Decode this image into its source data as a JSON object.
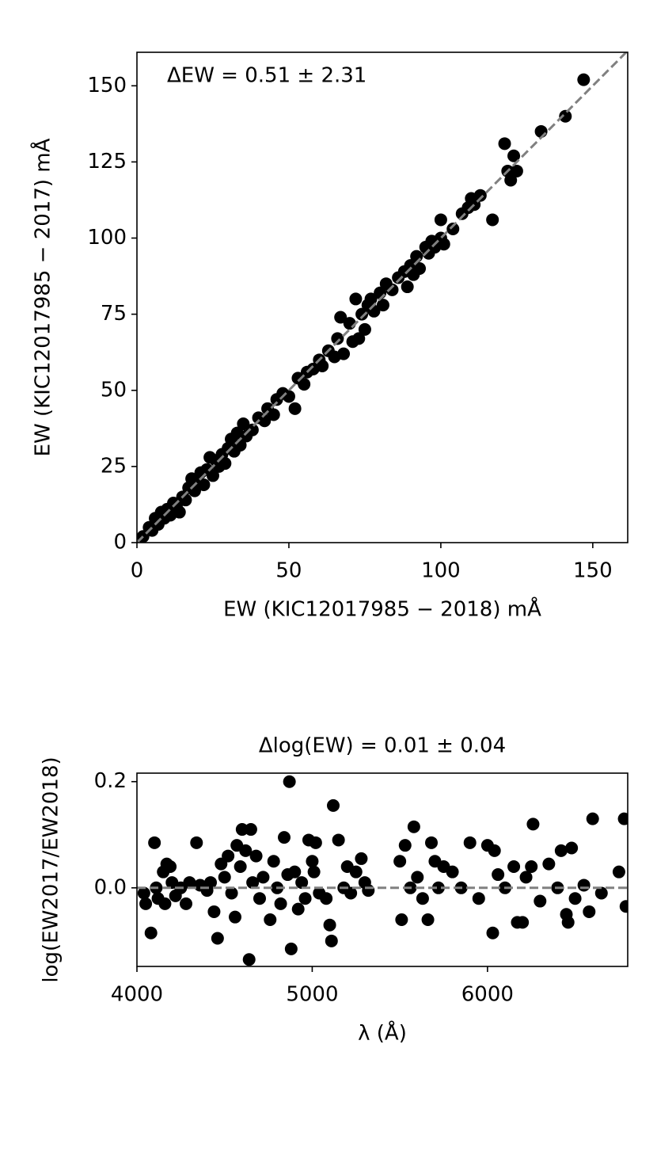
{
  "chart_data": [
    {
      "type": "scatter",
      "annotation": "ΔEW = 0.51 ± 2.31",
      "xlabel": "EW (KIC12017985 − 2018) mÅ",
      "ylabel": "EW (KIC12017985 − 2017) mÅ",
      "xlim": [
        0,
        161.5
      ],
      "ylim": [
        0,
        161
      ],
      "xticks": [
        0,
        50,
        100,
        150
      ],
      "yticks": [
        0,
        25,
        50,
        75,
        100,
        125,
        150
      ],
      "color": "#000000",
      "reference_line": "diagonal",
      "reference_color": "#808080",
      "x": [
        2,
        4,
        5,
        6,
        7,
        8,
        9,
        10,
        11,
        12,
        13,
        14,
        15,
        16,
        17,
        18,
        19,
        20,
        21,
        22,
        23,
        24,
        25,
        26,
        27,
        28,
        29,
        30,
        31,
        32,
        33,
        34,
        35,
        36,
        38,
        40,
        42,
        43,
        45,
        46,
        48,
        50,
        52,
        53,
        55,
        56,
        58,
        60,
        61,
        63,
        65,
        66,
        67,
        68,
        70,
        71,
        72,
        73,
        74,
        75,
        76,
        77,
        78,
        80,
        81,
        82,
        84,
        86,
        88,
        89,
        90,
        91,
        92,
        93,
        95,
        96,
        97,
        98,
        100,
        100,
        101,
        104,
        107,
        109,
        110,
        111,
        113,
        117,
        121,
        122,
        123,
        124,
        125,
        133,
        141,
        147
      ],
      "values": [
        2,
        5,
        4,
        8,
        6,
        10,
        8,
        11,
        9,
        13,
        12,
        10,
        15,
        14,
        18,
        21,
        17,
        20,
        23,
        19,
        24,
        28,
        22,
        27,
        25,
        29,
        26,
        31,
        34,
        30,
        36,
        32,
        39,
        35,
        37,
        41,
        40,
        44,
        42,
        47,
        49,
        48,
        44,
        54,
        52,
        56,
        57,
        60,
        58,
        63,
        61,
        67,
        74,
        62,
        72,
        66,
        80,
        67,
        75,
        70,
        78,
        80,
        76,
        82,
        78,
        85,
        83,
        87,
        89,
        84,
        91,
        88,
        94,
        90,
        97,
        95,
        99,
        97,
        106,
        100,
        98,
        103,
        108,
        110,
        113,
        111,
        114,
        106,
        131,
        122,
        119,
        127,
        122,
        135,
        140,
        152
      ]
    },
    {
      "type": "scatter",
      "title": "Δlog(EW) = 0.01 ± 0.04",
      "xlabel": "λ (Å)",
      "ylabel": "log(EW2017/EW2018)",
      "xlim": [
        4000,
        6800
      ],
      "ylim": [
        -0.148,
        0.216
      ],
      "xticks": [
        4000,
        5000,
        6000
      ],
      "yticks": [
        {
          "value": 0,
          "label": "0.0"
        },
        {
          "value": 0.2,
          "label": "0.2"
        }
      ],
      "color": "#000000",
      "reference_line": "zero",
      "reference_color": "#808080",
      "x": [
        4040,
        4050,
        4080,
        4100,
        4110,
        4120,
        4150,
        4160,
        4170,
        4190,
        4200,
        4220,
        4250,
        4280,
        4300,
        4340,
        4360,
        4400,
        4420,
        4440,
        4460,
        4480,
        4500,
        4520,
        4540,
        4560,
        4570,
        4590,
        4600,
        4620,
        4640,
        4650,
        4660,
        4680,
        4700,
        4720,
        4760,
        4780,
        4800,
        4820,
        4840,
        4860,
        4870,
        4880,
        4900,
        4920,
        4940,
        4960,
        4980,
        5000,
        5010,
        5020,
        5040,
        5080,
        5100,
        5110,
        5120,
        5150,
        5180,
        5200,
        5220,
        5250,
        5280,
        5300,
        5320,
        5500,
        5510,
        5530,
        5560,
        5580,
        5600,
        5630,
        5660,
        5680,
        5700,
        5720,
        5750,
        5800,
        5850,
        5900,
        5950,
        6000,
        6030,
        6040,
        6060,
        6100,
        6150,
        6170,
        6200,
        6220,
        6250,
        6260,
        6300,
        6350,
        6400,
        6420,
        6450,
        6460,
        6480,
        6500,
        6550,
        6580,
        6600,
        6650,
        6750,
        6780,
        6790
      ],
      "values": [
        -0.01,
        -0.03,
        -0.085,
        0.085,
        0.0,
        -0.02,
        0.03,
        -0.03,
        0.045,
        0.04,
        0.01,
        -0.015,
        0.0,
        -0.03,
        0.01,
        0.085,
        0.005,
        -0.005,
        0.01,
        -0.045,
        -0.095,
        0.045,
        0.02,
        0.06,
        -0.01,
        -0.055,
        0.08,
        0.04,
        0.11,
        0.07,
        -0.135,
        0.11,
        0.01,
        0.06,
        -0.02,
        0.02,
        -0.06,
        0.05,
        0.0,
        -0.03,
        0.095,
        0.025,
        0.2,
        -0.115,
        0.03,
        -0.04,
        0.01,
        -0.02,
        0.09,
        0.05,
        0.03,
        0.085,
        -0.01,
        -0.02,
        -0.07,
        -0.1,
        0.155,
        0.09,
        0.0,
        0.04,
        -0.01,
        0.03,
        0.055,
        0.01,
        -0.005,
        0.05,
        -0.06,
        0.08,
        0.0,
        0.115,
        0.02,
        -0.02,
        -0.06,
        0.085,
        0.05,
        0.0,
        0.04,
        0.03,
        0.0,
        0.085,
        -0.02,
        0.08,
        -0.085,
        0.07,
        0.025,
        0.0,
        0.04,
        -0.065,
        -0.065,
        0.02,
        0.04,
        0.12,
        -0.025,
        0.045,
        0.0,
        0.07,
        -0.05,
        -0.065,
        0.075,
        -0.02,
        0.005,
        -0.045,
        0.13,
        -0.01,
        0.03,
        0.13,
        -0.035
      ]
    }
  ]
}
